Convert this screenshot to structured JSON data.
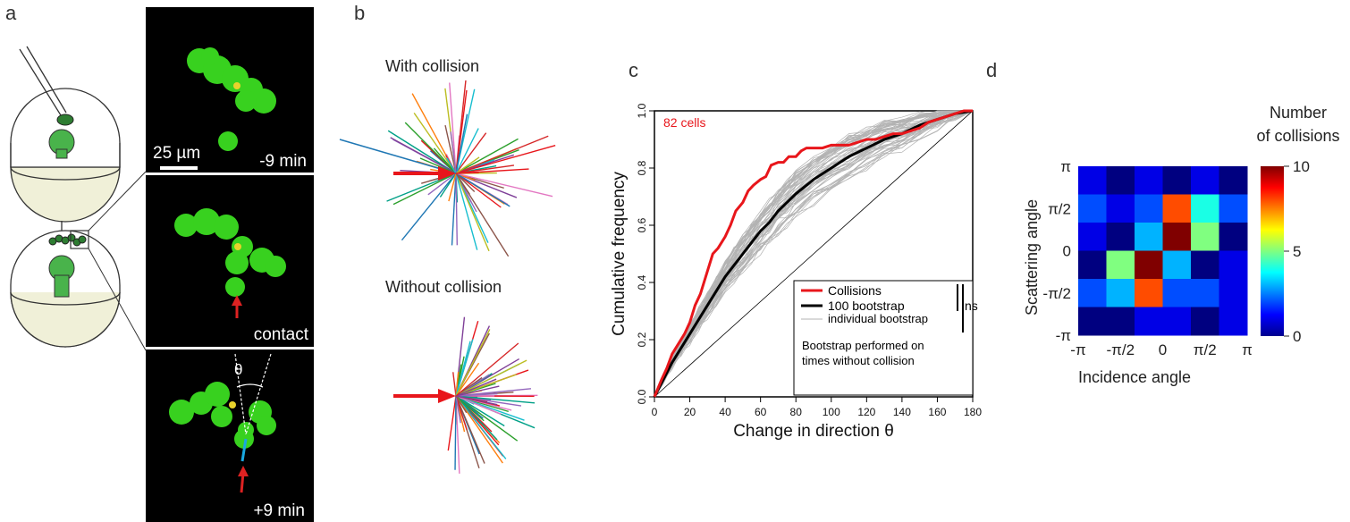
{
  "panel_a": {
    "letter": "a",
    "scale_bar": "25 µm",
    "frames": [
      {
        "time": "-9 min"
      },
      {
        "time": "contact"
      },
      {
        "time": "+9 min"
      }
    ],
    "angle_symbol": "θ"
  },
  "panel_b": {
    "letter": "b",
    "with_title": "With collision",
    "without_title": "Without collision"
  },
  "panel_c": {
    "letter": "c",
    "cells_label": "82 cells",
    "xlabel": "Change in direction θ",
    "ylabel": "Cumulative frequency",
    "legend": {
      "collisions": "Collisions",
      "bootstrap": "100 bootstrap",
      "individual": "individual bootstrap",
      "ns": "ns",
      "note_line1": "Bootstrap performed on",
      "note_line2": "times without collision"
    },
    "colors": {
      "collisions": "#e8161b",
      "bootstrap": "#000000",
      "individual": "#b3b3b3",
      "diagonal": "#000000"
    }
  },
  "panel_d": {
    "letter": "d",
    "colorbar_title_line1": "Number",
    "colorbar_title_line2": "of collisions",
    "xlabel": "Incidence angle",
    "ylabel": "Scattering angle"
  },
  "chart_data": [
    {
      "type": "line",
      "xlim": [
        0,
        180
      ],
      "ylim": [
        0,
        1
      ],
      "xticks": [
        "0",
        "20",
        "40",
        "60",
        "80",
        "100",
        "120",
        "140",
        "160",
        "180"
      ],
      "yticks": [
        "0.0",
        "0.2",
        "0.4",
        "0.6",
        "0.8",
        "1.0"
      ],
      "series": [
        {
          "name": "Collisions",
          "x": [
            0,
            4,
            7,
            10,
            13,
            17,
            20,
            23,
            26,
            30,
            33,
            36,
            40,
            43,
            46,
            50,
            53,
            56,
            60,
            63,
            66,
            70,
            73,
            76,
            80,
            83,
            86,
            90,
            95,
            100,
            105,
            110,
            115,
            120,
            125,
            130,
            135,
            140,
            145,
            150,
            155,
            160,
            165,
            170,
            175,
            180
          ],
          "y": [
            0,
            0.06,
            0.1,
            0.15,
            0.18,
            0.22,
            0.26,
            0.32,
            0.36,
            0.44,
            0.5,
            0.52,
            0.56,
            0.6,
            0.65,
            0.68,
            0.72,
            0.74,
            0.76,
            0.77,
            0.81,
            0.82,
            0.82,
            0.84,
            0.84,
            0.86,
            0.87,
            0.87,
            0.87,
            0.88,
            0.88,
            0.88,
            0.89,
            0.9,
            0.9,
            0.91,
            0.92,
            0.92,
            0.93,
            0.94,
            0.96,
            0.97,
            0.98,
            0.99,
            1.0,
            1.0
          ]
        },
        {
          "name": "100 bootstrap",
          "x": [
            0,
            5,
            10,
            15,
            20,
            25,
            30,
            35,
            40,
            45,
            50,
            55,
            60,
            65,
            70,
            75,
            80,
            90,
            100,
            110,
            120,
            130,
            140,
            150,
            160,
            170,
            180
          ],
          "y": [
            0,
            0.06,
            0.12,
            0.17,
            0.22,
            0.27,
            0.32,
            0.37,
            0.42,
            0.46,
            0.5,
            0.54,
            0.58,
            0.61,
            0.65,
            0.68,
            0.71,
            0.76,
            0.8,
            0.84,
            0.87,
            0.9,
            0.92,
            0.95,
            0.97,
            0.99,
            1.0
          ]
        },
        {
          "name": "individual bootstrap",
          "x": [
            0,
            180
          ],
          "y": [
            0,
            1
          ]
        }
      ]
    },
    {
      "type": "heatmap",
      "x_categories": [
        "-π",
        "-π/2",
        "0",
        "π/2",
        "π"
      ],
      "y_categories": [
        "π",
        "π/2",
        "0",
        "-π/2",
        "-π"
      ],
      "grid_rows": 6,
      "grid_cols": 6,
      "values": [
        [
          1,
          0,
          1,
          0,
          1,
          0
        ],
        [
          2,
          1,
          2,
          8,
          4,
          2
        ],
        [
          1,
          0,
          3,
          10,
          5,
          0
        ],
        [
          0,
          5,
          10,
          3,
          0,
          1
        ],
        [
          2,
          3,
          8,
          2,
          2,
          1
        ],
        [
          0,
          0,
          1,
          1,
          0,
          1
        ]
      ],
      "value_range": [
        0,
        10
      ],
      "colorbar_ticks": [
        "0",
        "5",
        "10"
      ]
    }
  ]
}
